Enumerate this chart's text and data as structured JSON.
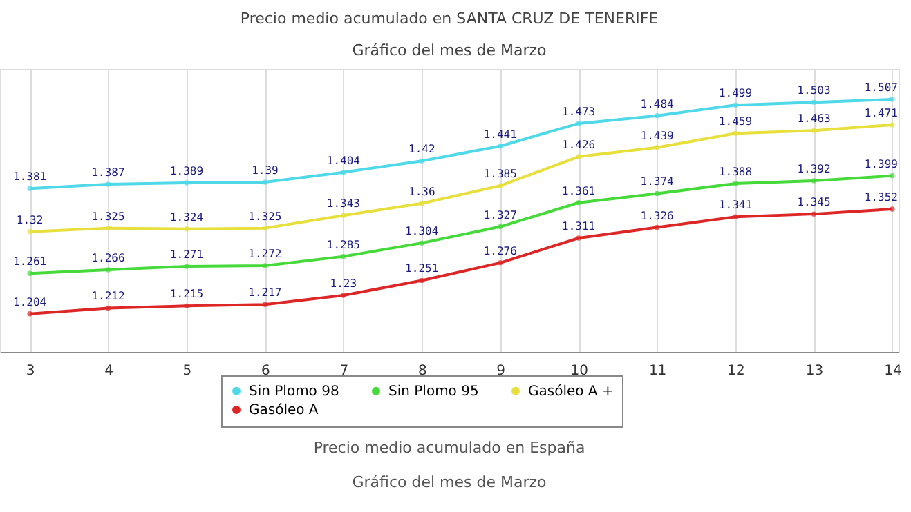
{
  "chart_data": {
    "type": "line",
    "title": "Precio medio acumulado en SANTA CRUZ DE TENERIFE",
    "subtitle": "Gráfico del mes de Marzo",
    "x": [
      3,
      4,
      5,
      6,
      7,
      8,
      9,
      10,
      11,
      12,
      13,
      14
    ],
    "series": [
      {
        "name": "Sin Plomo 98",
        "color": "#4fd8e8",
        "values": [
          1.381,
          1.387,
          1.389,
          1.39,
          1.404,
          1.42,
          1.441,
          1.473,
          1.484,
          1.499,
          1.503,
          1.507
        ]
      },
      {
        "name": "Gasóleo A +",
        "color": "#e6df3c",
        "values": [
          1.32,
          1.325,
          1.324,
          1.325,
          1.343,
          1.36,
          1.385,
          1.426,
          1.439,
          1.459,
          1.463,
          1.471
        ]
      },
      {
        "name": "Sin Plomo 95",
        "color": "#45d93a",
        "values": [
          1.261,
          1.266,
          1.271,
          1.272,
          1.285,
          1.304,
          1.327,
          1.361,
          1.374,
          1.388,
          1.392,
          1.399
        ]
      },
      {
        "name": "Gasóleo A",
        "color": "#dd2626",
        "values": [
          1.204,
          1.212,
          1.215,
          1.217,
          1.23,
          1.251,
          1.276,
          1.311,
          1.326,
          1.341,
          1.345,
          1.352
        ]
      }
    ],
    "xlim": [
      2.62,
      14.08
    ],
    "xticks": [
      3,
      4,
      5,
      6,
      7,
      8,
      9,
      10,
      11,
      12,
      13,
      14
    ],
    "ylim": [
      1.15,
      1.55
    ],
    "tick_labels": "x",
    "grid": "x",
    "legend": "bottom",
    "marker": "circle",
    "line_style": "solid",
    "data_labels": true,
    "annotations": [
      "Precio medio acumulado en España",
      "Gráfico del mes de Marzo"
    ]
  }
}
